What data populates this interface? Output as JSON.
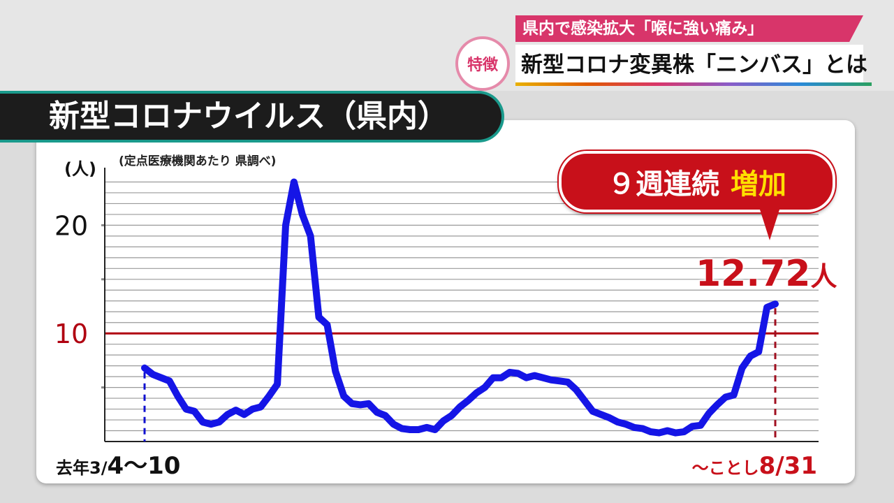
{
  "banner": {
    "line1": "県内で感染拡大「喉に強い痛み」",
    "line2": "新型コロナ変異株「ニンバス」とは",
    "badge": "特徴"
  },
  "title": "新型コロナウイルス（県内）",
  "callout": {
    "white": "９週連続",
    "yellow": "増加"
  },
  "peak_label": {
    "value": "12.72",
    "unit": "人"
  },
  "chart_data": {
    "type": "line",
    "ylabel": "(人)",
    "note": "(定点医療機関あたり  県調べ)",
    "yticks": [
      20,
      10
    ],
    "ylim": [
      0,
      25
    ],
    "reference_line": 10,
    "x_start_label": {
      "prefix": "去年3/",
      "main": "4〜10"
    },
    "x_end_label": {
      "prefix": "〜ことし",
      "main": "8/31"
    },
    "series": [
      {
        "values": [
          6.8,
          6.2,
          5.9,
          5.6,
          4.2,
          3.0,
          2.8,
          1.8,
          1.6,
          1.8,
          2.5,
          2.9,
          2.5,
          3.0,
          3.2,
          4.2,
          5.3,
          20.0,
          24.0,
          21.0,
          19.0,
          11.5,
          10.8,
          6.5,
          4.2,
          3.5,
          3.4,
          3.5,
          2.7,
          2.4,
          1.6,
          1.2,
          1.1,
          1.1,
          1.3,
          1.1,
          1.9,
          2.4,
          3.2,
          3.8,
          4.5,
          5.0,
          5.9,
          5.9,
          6.4,
          6.3,
          5.9,
          6.1,
          5.9,
          5.7,
          5.6,
          5.5,
          4.8,
          3.8,
          2.8,
          2.5,
          2.2,
          1.8,
          1.6,
          1.3,
          1.2,
          0.9,
          0.8,
          1.0,
          0.8,
          0.9,
          1.4,
          1.5,
          2.6,
          3.4,
          4.1,
          4.3,
          6.8,
          7.9,
          8.3,
          12.4,
          12.72
        ]
      }
    ]
  }
}
